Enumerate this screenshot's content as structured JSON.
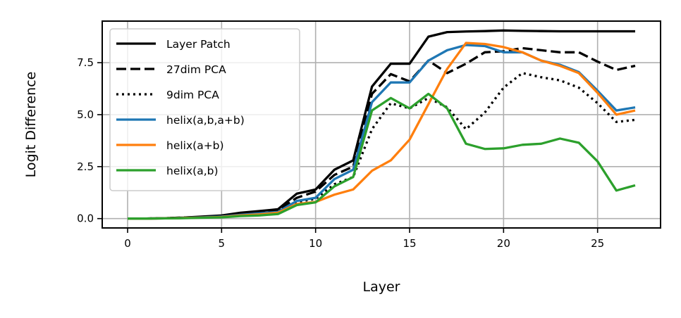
{
  "chart_data": {
    "type": "line",
    "title": "",
    "xlabel": "Layer",
    "ylabel": "Logit Difference",
    "xlim": [
      -1.35,
      28.35
    ],
    "ylim": [
      -0.45,
      9.5
    ],
    "xticks": [
      0,
      5,
      10,
      15,
      20,
      25
    ],
    "yticks": [
      0.0,
      2.5,
      5.0,
      7.5
    ],
    "ytick_labels": [
      "0.0",
      "2.5",
      "5.0",
      "7.5"
    ],
    "grid": true,
    "legend_position": "upper-left",
    "x": [
      0,
      1,
      2,
      3,
      4,
      5,
      6,
      7,
      8,
      9,
      10,
      11,
      12,
      13,
      14,
      15,
      16,
      17,
      18,
      19,
      20,
      21,
      22,
      23,
      24,
      25,
      26,
      27
    ],
    "series": [
      {
        "name": "Layer Patch",
        "color": "#000000",
        "dash": "solid",
        "values": [
          0.0,
          0.0,
          0.02,
          0.05,
          0.1,
          0.15,
          0.28,
          0.36,
          0.45,
          1.2,
          1.4,
          2.35,
          2.8,
          6.35,
          7.45,
          7.45,
          8.75,
          8.97,
          9.0,
          9.02,
          9.05,
          9.03,
          9.02,
          9.01,
          9.01,
          9.01,
          9.01,
          9.01
        ]
      },
      {
        "name": "27dim PCA",
        "color": "#000000",
        "dash": "dashed",
        "values": [
          0.0,
          0.0,
          0.02,
          0.05,
          0.08,
          0.12,
          0.25,
          0.33,
          0.4,
          1.0,
          1.3,
          2.1,
          2.5,
          6.0,
          6.95,
          6.6,
          7.6,
          7.0,
          7.45,
          8.0,
          8.05,
          8.2,
          8.1,
          8.0,
          8.0,
          7.55,
          7.15,
          7.35
        ]
      },
      {
        "name": "9dim PCA",
        "color": "#000000",
        "dash": "dotted",
        "values": [
          0.0,
          0.0,
          0.02,
          0.04,
          0.07,
          0.1,
          0.2,
          0.28,
          0.35,
          0.8,
          0.95,
          1.65,
          2.0,
          4.3,
          5.55,
          5.3,
          5.8,
          5.35,
          4.3,
          5.1,
          6.3,
          7.0,
          6.8,
          6.65,
          6.3,
          5.55,
          4.65,
          4.75
        ]
      },
      {
        "name": "helix(a,b,a+b)",
        "color": "#1f77b4",
        "dash": "solid",
        "values": [
          0.0,
          0.0,
          0.01,
          0.03,
          0.06,
          0.1,
          0.18,
          0.25,
          0.32,
          0.85,
          1.0,
          1.9,
          2.35,
          5.6,
          6.55,
          6.55,
          7.6,
          8.1,
          8.35,
          8.3,
          8.0,
          8.0,
          7.6,
          7.4,
          7.05,
          6.15,
          5.2,
          5.35
        ]
      },
      {
        "name": "helix(a+b)",
        "color": "#ff7f0e",
        "dash": "solid",
        "values": [
          0.0,
          0.0,
          0.01,
          0.03,
          0.05,
          0.08,
          0.15,
          0.2,
          0.28,
          0.7,
          0.8,
          1.15,
          1.4,
          2.3,
          2.8,
          3.8,
          5.5,
          7.2,
          8.45,
          8.4,
          8.25,
          8.0,
          7.6,
          7.35,
          7.0,
          6.05,
          5.0,
          5.2
        ]
      },
      {
        "name": "helix(a,b)",
        "color": "#2ca02c",
        "dash": "solid",
        "values": [
          0.0,
          0.0,
          0.01,
          0.02,
          0.04,
          0.06,
          0.12,
          0.15,
          0.22,
          0.65,
          0.78,
          1.55,
          2.0,
          5.2,
          5.8,
          5.3,
          6.0,
          5.3,
          3.6,
          3.35,
          3.38,
          3.55,
          3.6,
          3.85,
          3.65,
          2.75,
          1.35,
          1.6
        ]
      }
    ]
  }
}
